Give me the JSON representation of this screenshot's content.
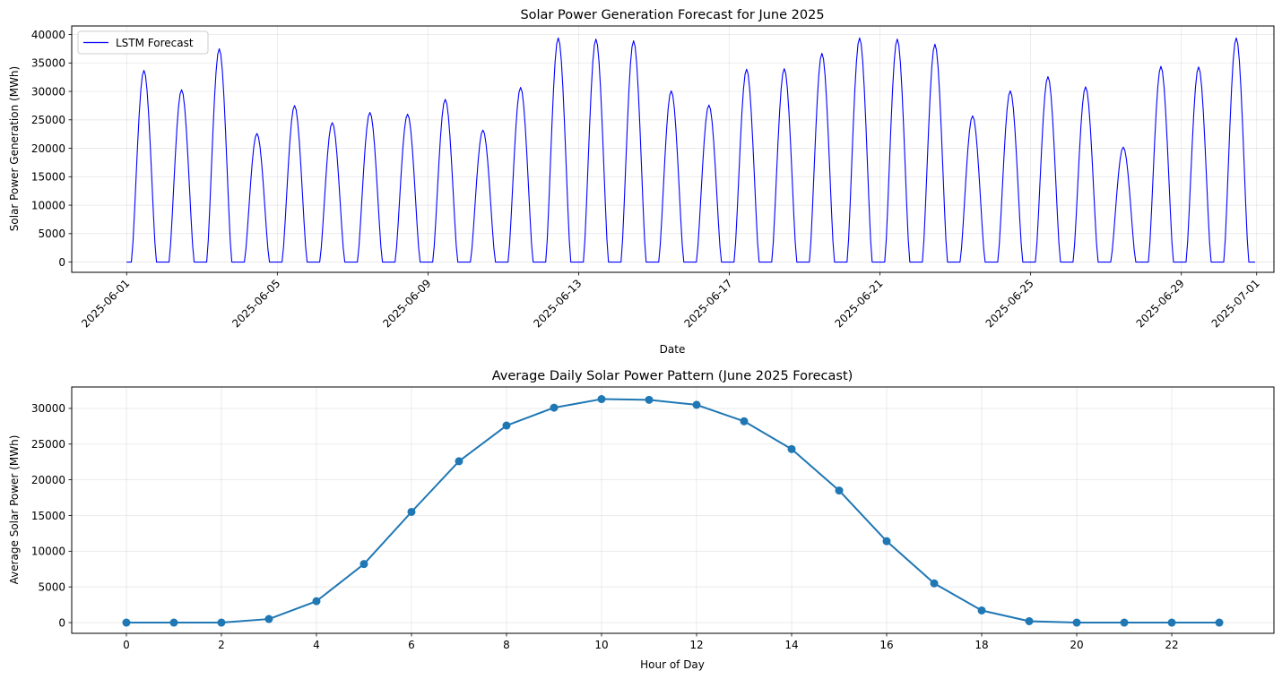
{
  "chart_data": [
    {
      "type": "line",
      "title": "Solar Power Generation Forecast for June 2025",
      "xlabel": "Date",
      "ylabel": "Solar Power Generation (MWh)",
      "x_range": [
        "2025-05-30T13:00",
        "2025-07-01T11:00"
      ],
      "ylim": [
        -1800,
        41500
      ],
      "yticks": [
        0,
        5000,
        10000,
        15000,
        20000,
        25000,
        30000,
        35000,
        40000
      ],
      "xticks": [
        "2025-06-01",
        "2025-06-05",
        "2025-06-09",
        "2025-06-13",
        "2025-06-17",
        "2025-06-21",
        "2025-06-25",
        "2025-06-29",
        "2025-07-01"
      ],
      "grid": true,
      "legend": {
        "position": "top-left",
        "entries": [
          "LSTM Forecast"
        ]
      },
      "series": [
        {
          "name": "LSTM Forecast",
          "color": "#0000ff",
          "resolution": "hourly",
          "start": "2025-06-01T00:00",
          "end": "2025-06-30T23:00",
          "daily_peaks": [
            33700,
            30300,
            37500,
            22600,
            27500,
            24500,
            26300,
            26000,
            28600,
            23200,
            30700,
            39400,
            39200,
            38900,
            30100,
            27600,
            33900,
            34000,
            36700,
            39400,
            39200,
            38300,
            25700,
            30100,
            32600,
            30800,
            20200,
            34400,
            34300,
            39400
          ]
        }
      ]
    },
    {
      "type": "line",
      "title": "Average Daily Solar Power Pattern (June 2025 Forecast)",
      "xlabel": "Hour of Day",
      "ylabel": "Average Solar Power (MWh)",
      "xlim": [
        -1.15,
        24.15
      ],
      "ylim": [
        -1500,
        33000
      ],
      "xticks": [
        0,
        2,
        4,
        6,
        8,
        10,
        12,
        14,
        16,
        18,
        20,
        22
      ],
      "yticks": [
        0,
        5000,
        10000,
        15000,
        20000,
        25000,
        30000
      ],
      "grid": true,
      "series": [
        {
          "color": "#1f77b4",
          "marker": "circle",
          "x": [
            0,
            1,
            2,
            3,
            4,
            5,
            6,
            7,
            8,
            9,
            10,
            11,
            12,
            13,
            14,
            15,
            16,
            17,
            18,
            19,
            20,
            21,
            22,
            23
          ],
          "y": [
            0,
            0,
            0,
            500,
            3000,
            8200,
            15500,
            22600,
            27600,
            30100,
            31300,
            31200,
            30500,
            28200,
            24300,
            18500,
            11400,
            5500,
            1700,
            200,
            0,
            0,
            0,
            0
          ]
        }
      ]
    }
  ]
}
